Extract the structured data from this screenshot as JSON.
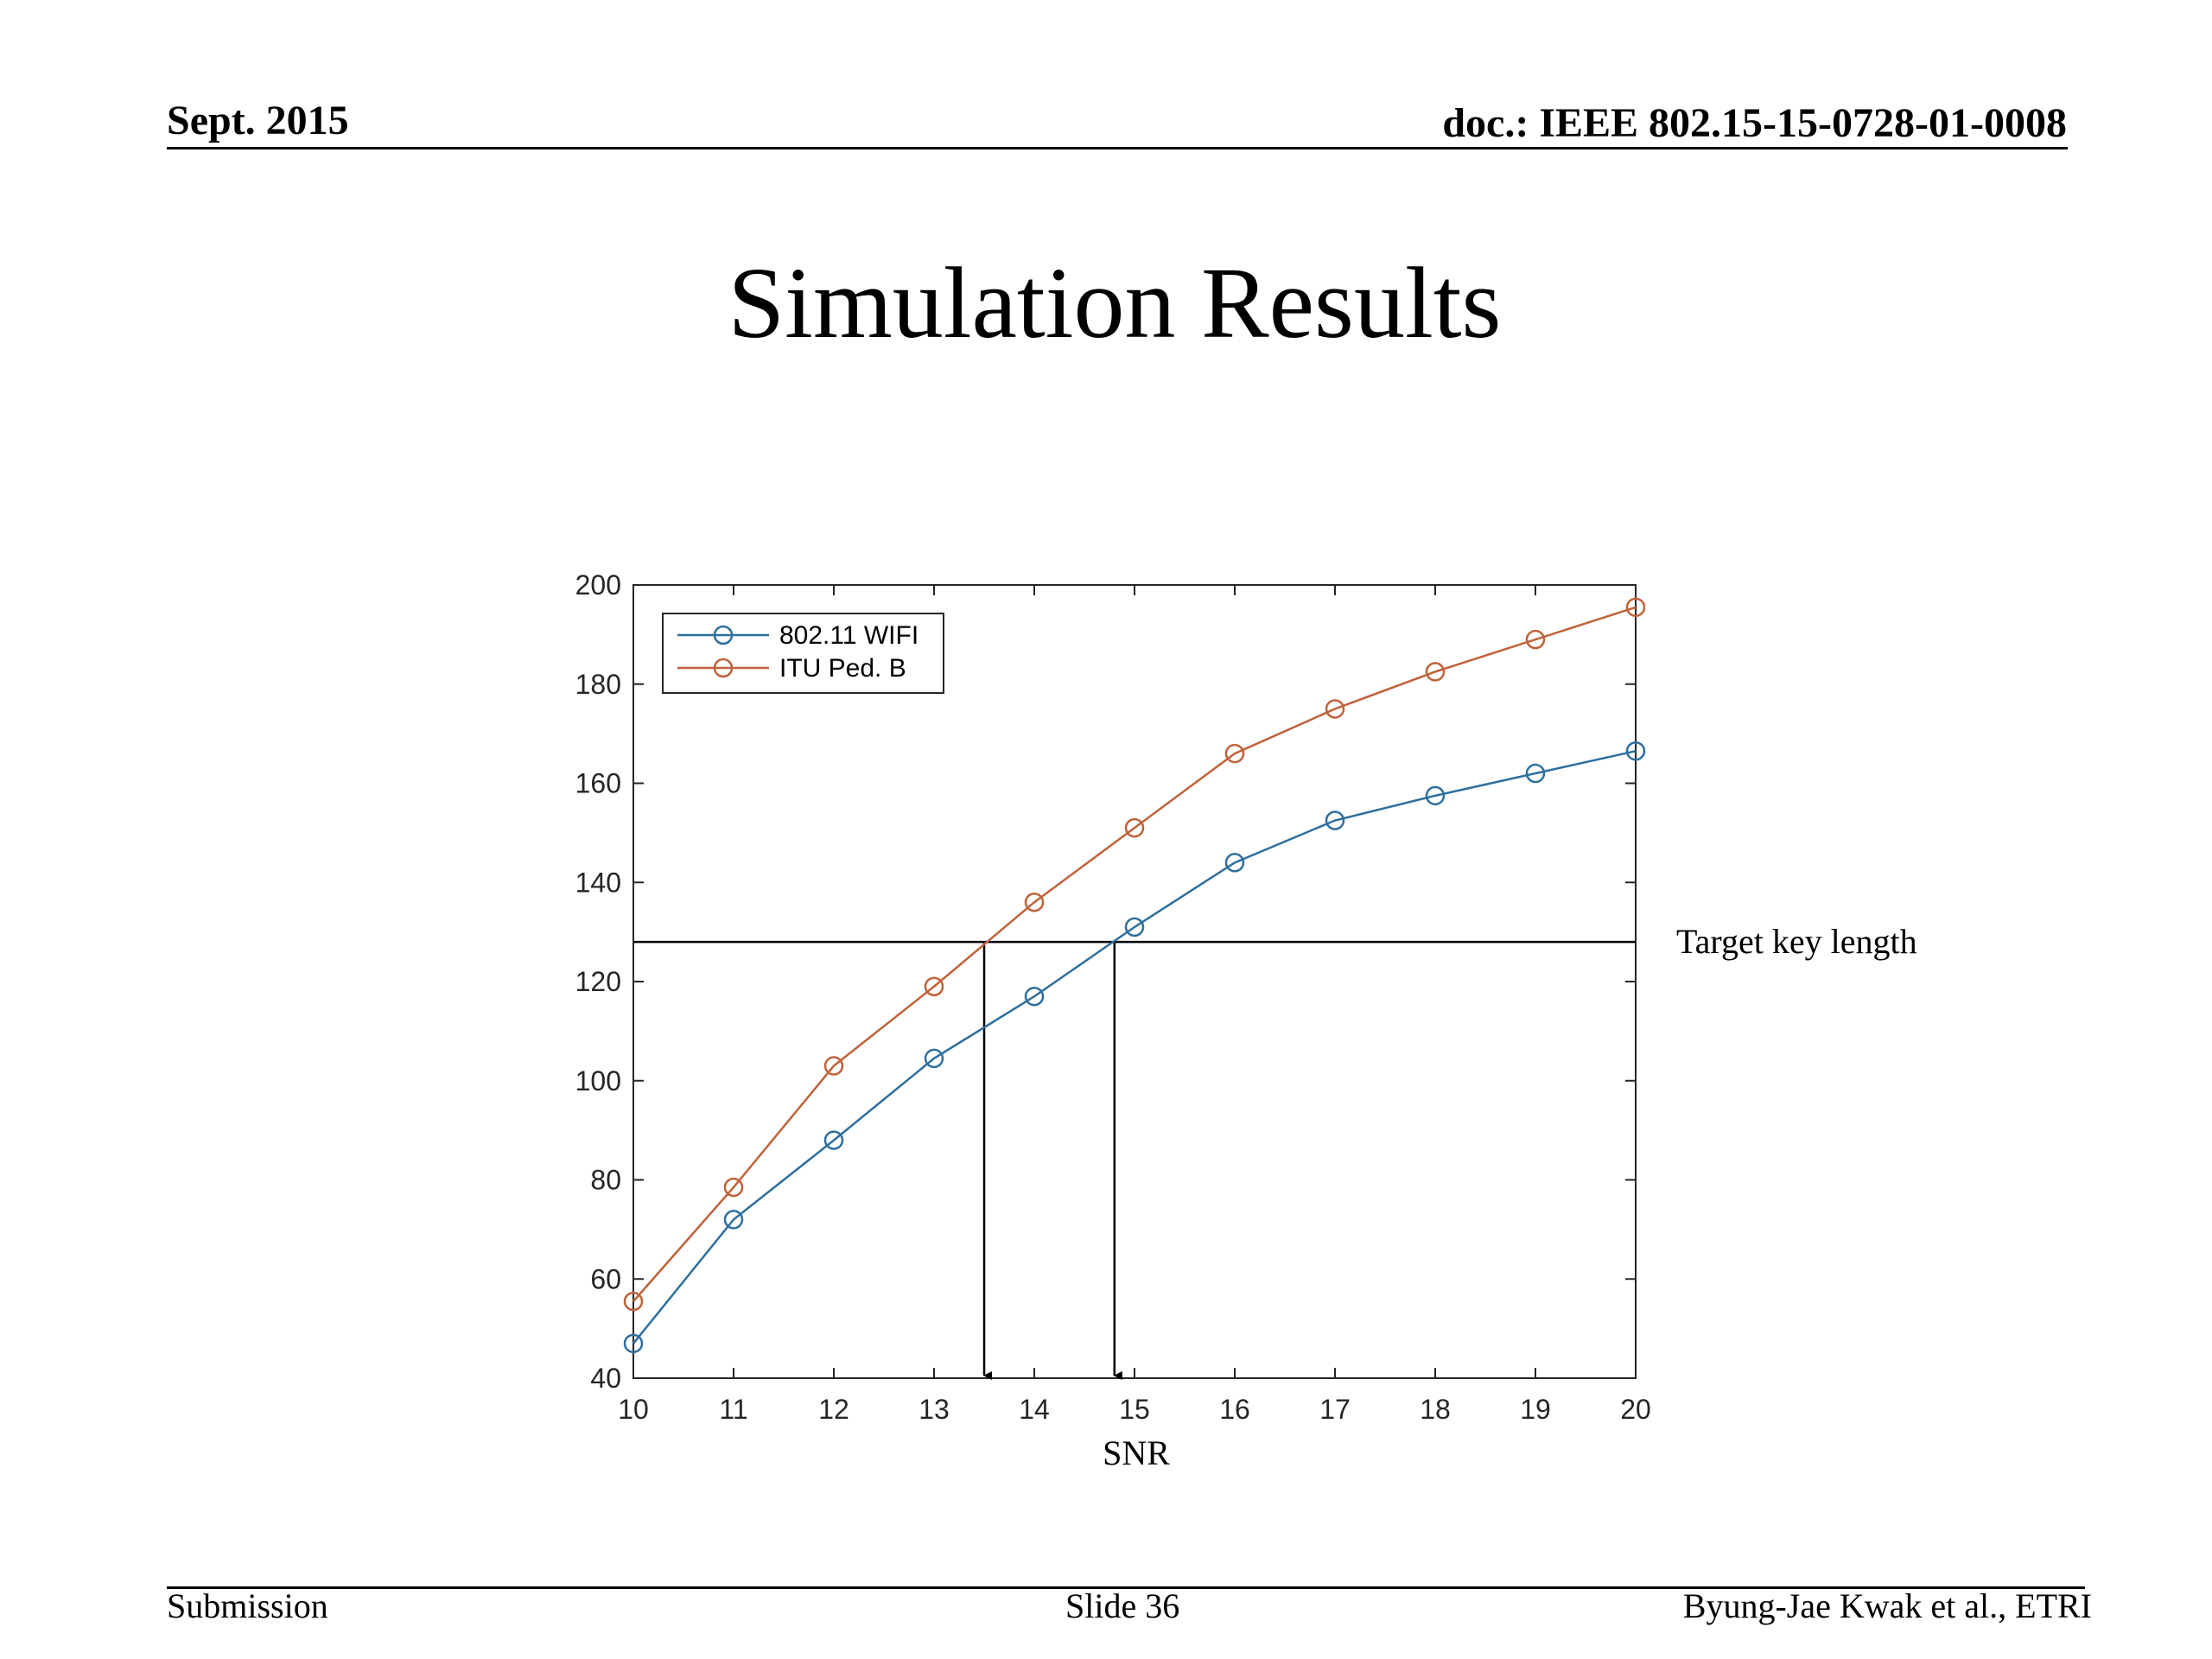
{
  "header": {
    "date": "Sept. 2015",
    "doc": "doc.: IEEE 802.15-15-0728-01-0008"
  },
  "slide_title": "Simulation Results",
  "footer": {
    "left": "Submission",
    "center": "Slide 36",
    "right": "Byung-Jae Kwak et al., ETRI"
  },
  "chart_data": {
    "type": "line",
    "xlabel": "SNR",
    "ylabel": "",
    "x": [
      10,
      11,
      12,
      13,
      14,
      15,
      16,
      17,
      18,
      19,
      20
    ],
    "xlim": [
      10,
      20
    ],
    "ylim": [
      40,
      200
    ],
    "xticks": [
      10,
      11,
      12,
      13,
      14,
      15,
      16,
      17,
      18,
      19,
      20
    ],
    "yticks": [
      40,
      60,
      80,
      100,
      120,
      140,
      160,
      180,
      200
    ],
    "legend_position": "top-left",
    "grid": false,
    "series": [
      {
        "name": "802.11 WIFI",
        "color": "#2e6f9e",
        "marker": "circle",
        "values": [
          47,
          72,
          88,
          104.5,
          117,
          131,
          144,
          152.5,
          157.5,
          162,
          166.5
        ]
      },
      {
        "name": "ITU Ped. B",
        "color": "#c0623a",
        "marker": "circle",
        "values": [
          55.5,
          78.5,
          103,
          119,
          136,
          151,
          166,
          175,
          182.5,
          189,
          195.5
        ]
      }
    ],
    "reference_line": {
      "y": 128,
      "label": "Target key length"
    },
    "arrows": [
      {
        "x": 13.5,
        "from_y": 128,
        "to_y": 40
      },
      {
        "x": 14.8,
        "from_y": 128,
        "to_y": 40
      }
    ]
  }
}
